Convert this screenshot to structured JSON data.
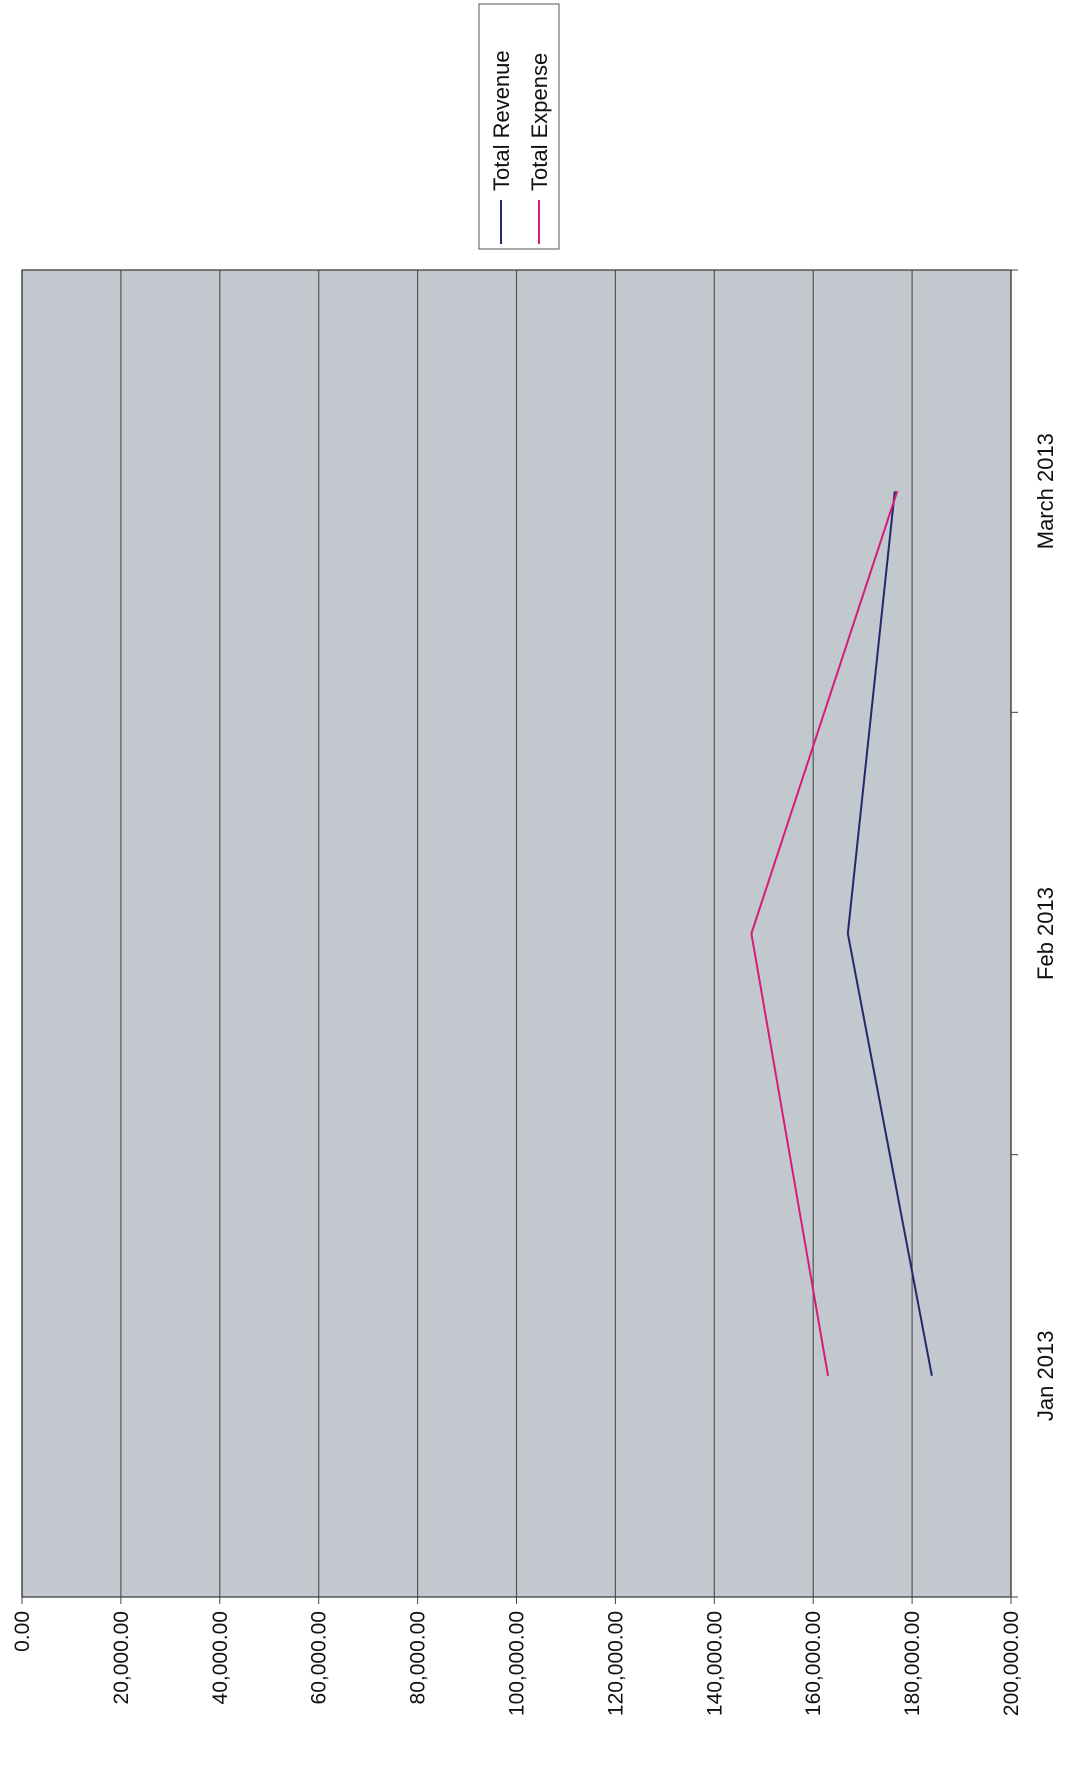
{
  "chart_data": {
    "type": "line",
    "categories": [
      "Jan 2013",
      "Feb 2013",
      "March 2013"
    ],
    "series": [
      {
        "name": "Total Revenue",
        "values": [
          184000,
          167000,
          176500
        ],
        "color": "#1f2a6b"
      },
      {
        "name": "Total Expense",
        "values": [
          163000,
          147500,
          177000
        ],
        "color": "#d81b7a"
      }
    ],
    "y_ticks": [
      "0.00",
      "20,000.00",
      "40,000.00",
      "60,000.00",
      "80,000.00",
      "100,000.00",
      "120,000.00",
      "140,000.00",
      "160,000.00",
      "180,000.00",
      "200,000.00"
    ],
    "ylim": [
      0,
      200000
    ],
    "y_step": 20000,
    "grid": true,
    "legend_position": "top-right",
    "orientation": "rotated-90-counterclockwise",
    "plot_background": "#c3c8cf",
    "grid_color": "#555555"
  }
}
